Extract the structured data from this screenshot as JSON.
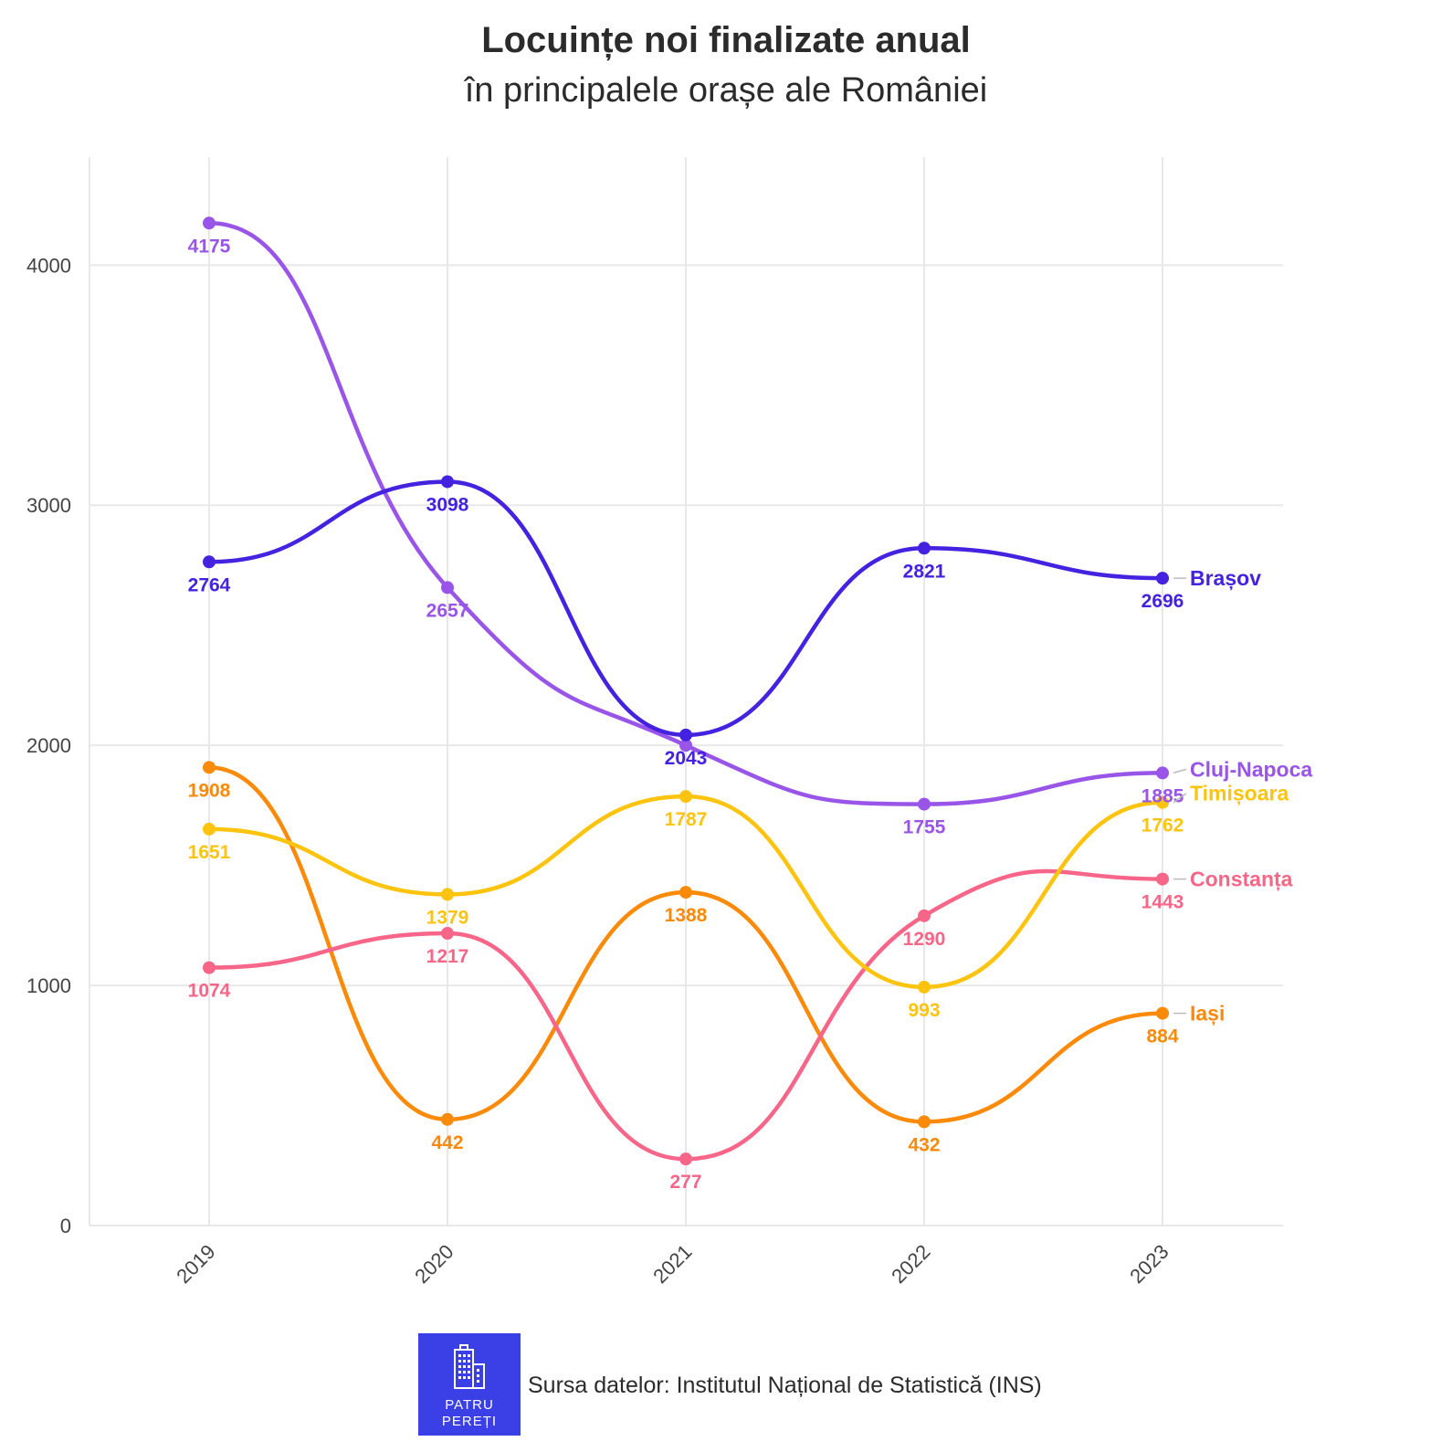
{
  "chart_data": {
    "type": "line",
    "title": "Locuințe noi finalizate anual",
    "subtitle": "în principalele orașe ale României",
    "categories": [
      "2019",
      "2020",
      "2021",
      "2022",
      "2023"
    ],
    "ylim": [
      0,
      4450
    ],
    "yticks": [
      0,
      1000,
      2000,
      3000,
      4000
    ],
    "grid": true,
    "legend": "inline labels at line ends (right)",
    "series": [
      {
        "name": "Brașov",
        "color": "#4422e0",
        "values": [
          2764,
          3098,
          2043,
          2821,
          2696
        ]
      },
      {
        "name": "Cluj-Napoca",
        "color": "#9955e8",
        "values": [
          4175,
          2657,
          2000,
          1755,
          1885
        ]
      },
      {
        "name": "Timișoara",
        "color": "#fcc40f",
        "values": [
          1651,
          1379,
          1787,
          993,
          1762
        ]
      },
      {
        "name": "Constanța",
        "color": "#f76688",
        "values": [
          1074,
          1217,
          277,
          1290,
          1443
        ]
      },
      {
        "name": "Iași",
        "color": "#fb8a08",
        "values": [
          1908,
          442,
          1388,
          432,
          884
        ]
      }
    ],
    "data_labels": [
      {
        "series": "Brașov",
        "values": [
          "2764",
          "3098",
          "2043",
          "2821",
          "2696"
        ]
      },
      {
        "series": "Cluj-Napoca",
        "values": [
          "4175",
          "2657",
          "",
          "1755",
          "1885"
        ]
      },
      {
        "series": "Timișoara",
        "values": [
          "1651",
          "1379",
          "1787",
          "993",
          "1762"
        ]
      },
      {
        "series": "Constanța",
        "values": [
          "1074",
          "1217",
          "277",
          "1290",
          "1443"
        ]
      },
      {
        "series": "Iași",
        "values": [
          "1908",
          "442",
          "1388",
          "432",
          "884"
        ]
      }
    ]
  },
  "footer": {
    "source": "Sursa datelor: Institutul Național de Statistică (INS)",
    "logo_line1": "PATRU",
    "logo_line2": "PEREȚI"
  }
}
